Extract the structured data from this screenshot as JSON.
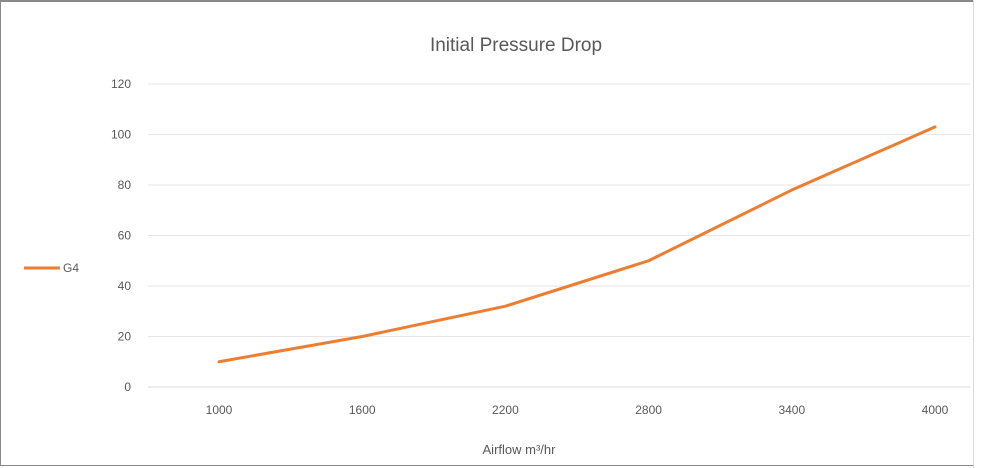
{
  "chart_data": {
    "type": "line",
    "title": "Initial Pressure Drop",
    "xlabel": "Airflow m³/hr",
    "ylabel": "",
    "categories": [
      "1000",
      "1600",
      "2200",
      "2800",
      "3400",
      "4000"
    ],
    "yticks": [
      "0",
      "20",
      "40",
      "60",
      "80",
      "100",
      "120"
    ],
    "ylim": [
      0,
      120
    ],
    "grid": true,
    "legend": "left",
    "series": [
      {
        "name": "G4",
        "color": "#ed7d31",
        "values": [
          10,
          20,
          32,
          50,
          78,
          103
        ]
      }
    ]
  }
}
